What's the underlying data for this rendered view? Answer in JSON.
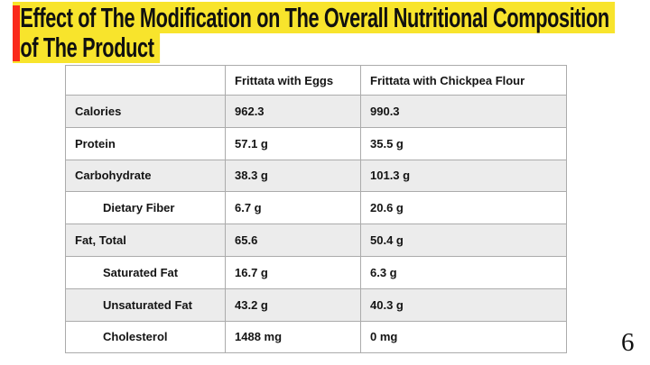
{
  "slide": {
    "title": {
      "line1": "Effect of The Modification on The Overall Nutritional Composition",
      "line2": "of The Product"
    },
    "page_number": "6"
  },
  "table": {
    "headers": [
      "",
      "Frittata with Eggs",
      "Frittata with Chickpea Flour"
    ],
    "rows": [
      {
        "label": "Calories",
        "eggs": "962.3",
        "chickpea": "990.3",
        "indented": false
      },
      {
        "label": "Protein",
        "eggs": "57.1 g",
        "chickpea": "35.5 g",
        "indented": false
      },
      {
        "label": "Carbohydrate",
        "eggs": "38.3 g",
        "chickpea": "101.3 g",
        "indented": false
      },
      {
        "label": "Dietary Fiber",
        "eggs": "6.7 g",
        "chickpea": "20.6 g",
        "indented": true
      },
      {
        "label": "Fat, Total",
        "eggs": "65.6",
        "chickpea": "50.4 g",
        "indented": false
      },
      {
        "label": "Saturated Fat",
        "eggs": "16.7 g",
        "chickpea": "6.3 g",
        "indented": true
      },
      {
        "label": "Unsaturated Fat",
        "eggs": "43.2 g",
        "chickpea": "40.3 g",
        "indented": true
      },
      {
        "label": "Cholesterol",
        "eggs": "1488 mg",
        "chickpea": "0 mg",
        "indented": true
      }
    ]
  },
  "colors": {
    "highlight_yellow": "#F8E42C",
    "accent_red": "#FA2A1B",
    "band_gray": "#ECECEC",
    "border_gray": "#ABABAB",
    "text_black": "#141414"
  }
}
